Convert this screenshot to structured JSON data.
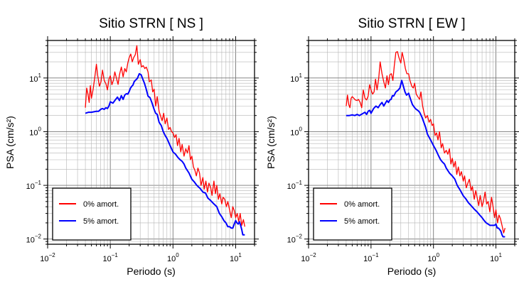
{
  "chart_data": [
    {
      "type": "line",
      "title": "Sitio STRN [ NS ]",
      "xlabel": "Periodo (s)",
      "ylabel": "PSA (cm/s²)",
      "xscale": "log",
      "yscale": "log",
      "xlim": [
        0.01,
        20
      ],
      "ylim": [
        0.008,
        50
      ],
      "xticks": [
        {
          "value": 0.01,
          "base": "10",
          "exp": "−2"
        },
        {
          "value": 0.1,
          "base": "10",
          "exp": "−1"
        },
        {
          "value": 1,
          "base": "10",
          "exp": "0"
        },
        {
          "value": 10,
          "base": "10",
          "exp": "1"
        }
      ],
      "yticks": [
        {
          "value": 0.01,
          "base": "10",
          "exp": "−2"
        },
        {
          "value": 0.1,
          "base": "10",
          "exp": "−1"
        },
        {
          "value": 1,
          "base": "10",
          "exp": "0"
        },
        {
          "value": 10,
          "base": "10",
          "exp": "1"
        }
      ],
      "grid": true,
      "legend": "bottom-left",
      "series": [
        {
          "name": "0% amort.",
          "color": "#ff0000",
          "x": [
            0.04,
            0.042,
            0.044,
            0.046,
            0.048,
            0.05,
            0.053,
            0.056,
            0.06,
            0.063,
            0.067,
            0.071,
            0.075,
            0.08,
            0.085,
            0.09,
            0.095,
            0.1,
            0.106,
            0.112,
            0.118,
            0.125,
            0.133,
            0.14,
            0.15,
            0.16,
            0.17,
            0.18,
            0.19,
            0.2,
            0.212,
            0.224,
            0.236,
            0.25,
            0.265,
            0.28,
            0.3,
            0.315,
            0.335,
            0.355,
            0.375,
            0.4,
            0.42,
            0.45,
            0.475,
            0.5,
            0.53,
            0.56,
            0.6,
            0.63,
            0.67,
            0.71,
            0.75,
            0.8,
            0.85,
            0.9,
            0.95,
            1.0,
            1.06,
            1.12,
            1.18,
            1.25,
            1.33,
            1.4,
            1.5,
            1.6,
            1.7,
            1.8,
            1.9,
            2.0,
            2.12,
            2.24,
            2.36,
            2.5,
            2.65,
            2.8,
            3.0,
            3.15,
            3.35,
            3.55,
            3.75,
            4.0,
            4.2,
            4.5,
            4.75,
            5.0,
            5.3,
            5.6,
            6.0,
            6.3,
            6.7,
            7.1,
            7.5,
            8.0,
            8.5,
            9.0,
            9.5,
            10.0,
            10.6,
            11.2,
            11.8,
            12.5,
            13.3,
            14.0
          ],
          "y": [
            2.8,
            6.5,
            5.0,
            3.5,
            7.2,
            4.2,
            6.0,
            9.5,
            18.0,
            11.0,
            7.0,
            8.5,
            14.0,
            9.0,
            7.8,
            6.0,
            9.5,
            11.0,
            7.5,
            9.0,
            13.0,
            10.0,
            7.6,
            11.5,
            16.0,
            10.5,
            15.0,
            13.0,
            19.0,
            24.0,
            28.0,
            20.0,
            24.0,
            27.0,
            40.0,
            18.0,
            22.0,
            16.0,
            17.0,
            15.0,
            16.0,
            13.0,
            8.5,
            9.2,
            5.5,
            6.2,
            3.0,
            4.5,
            2.4,
            2.0,
            1.6,
            2.2,
            1.4,
            1.8,
            1.1,
            1.2,
            1.0,
            0.95,
            0.78,
            0.88,
            0.55,
            0.75,
            0.42,
            0.58,
            0.35,
            0.48,
            0.4,
            0.55,
            0.3,
            0.35,
            0.22,
            0.19,
            0.15,
            0.21,
            0.17,
            0.1,
            0.14,
            0.085,
            0.12,
            0.075,
            0.11,
            0.09,
            0.065,
            0.12,
            0.07,
            0.1,
            0.055,
            0.07,
            0.045,
            0.06,
            0.055,
            0.04,
            0.05,
            0.035,
            0.025,
            0.04,
            0.034,
            0.025,
            0.03,
            0.021,
            0.03,
            0.018,
            0.023,
            0.017
          ]
        },
        {
          "name": "5% amort.",
          "color": "#0000ff",
          "x": [
            0.04,
            0.045,
            0.05,
            0.055,
            0.06,
            0.065,
            0.07,
            0.075,
            0.08,
            0.085,
            0.09,
            0.095,
            0.1,
            0.11,
            0.12,
            0.13,
            0.14,
            0.15,
            0.16,
            0.17,
            0.18,
            0.19,
            0.2,
            0.21,
            0.22,
            0.23,
            0.24,
            0.25,
            0.27,
            0.29,
            0.31,
            0.33,
            0.35,
            0.37,
            0.4,
            0.43,
            0.46,
            0.5,
            0.53,
            0.56,
            0.6,
            0.65,
            0.7,
            0.75,
            0.8,
            0.9,
            1.0,
            1.1,
            1.2,
            1.3,
            1.4,
            1.5,
            1.6,
            1.8,
            2.0,
            2.2,
            2.4,
            2.7,
            3.0,
            3.3,
            3.6,
            4.0,
            4.5,
            5.0,
            5.5,
            6.0,
            6.5,
            7.0,
            7.5,
            8.0,
            8.5,
            9.0,
            9.5,
            10.0,
            10.5,
            11.0,
            11.5,
            12.0,
            12.5,
            13.0,
            14.0
          ],
          "y": [
            2.2,
            2.3,
            2.3,
            2.35,
            2.4,
            2.4,
            2.6,
            2.7,
            2.6,
            2.8,
            2.7,
            3.0,
            3.6,
            3.4,
            3.9,
            4.4,
            3.8,
            4.7,
            4.0,
            4.8,
            5.1,
            5.0,
            5.6,
            6.5,
            7.0,
            7.4,
            8.5,
            9.0,
            9.8,
            12.0,
            11.5,
            9.5,
            8.0,
            6.5,
            4.6,
            4.3,
            3.5,
            2.6,
            2.2,
            2.1,
            1.5,
            1.3,
            1.0,
            0.85,
            0.75,
            0.55,
            0.42,
            0.38,
            0.33,
            0.3,
            0.28,
            0.25,
            0.21,
            0.17,
            0.13,
            0.115,
            0.1,
            0.088,
            0.075,
            0.072,
            0.058,
            0.052,
            0.045,
            0.04,
            0.03,
            0.026,
            0.022,
            0.02,
            0.017,
            0.017,
            0.016,
            0.016,
            0.019,
            0.022,
            0.02,
            0.019,
            0.021,
            0.018,
            0.015,
            0.012,
            0.012
          ]
        }
      ]
    },
    {
      "type": "line",
      "title": "Sitio STRN [ EW ]",
      "xlabel": "Periodo (s)",
      "ylabel": "PSA (cm/s²)",
      "xscale": "log",
      "yscale": "log",
      "xlim": [
        0.01,
        20
      ],
      "ylim": [
        0.008,
        50
      ],
      "xticks": [
        {
          "value": 0.01,
          "base": "10",
          "exp": "−2"
        },
        {
          "value": 0.1,
          "base": "10",
          "exp": "−1"
        },
        {
          "value": 1,
          "base": "10",
          "exp": "0"
        },
        {
          "value": 10,
          "base": "10",
          "exp": "1"
        }
      ],
      "yticks": [
        {
          "value": 0.01,
          "base": "10",
          "exp": "−2"
        },
        {
          "value": 0.1,
          "base": "10",
          "exp": "−1"
        },
        {
          "value": 1,
          "base": "10",
          "exp": "0"
        },
        {
          "value": 10,
          "base": "10",
          "exp": "1"
        }
      ],
      "grid": true,
      "legend": "bottom-left",
      "series": [
        {
          "name": "0% amort.",
          "color": "#ff0000",
          "x": [
            0.04,
            0.042,
            0.044,
            0.046,
            0.048,
            0.05,
            0.053,
            0.056,
            0.06,
            0.063,
            0.067,
            0.071,
            0.075,
            0.08,
            0.085,
            0.09,
            0.095,
            0.1,
            0.106,
            0.112,
            0.118,
            0.125,
            0.133,
            0.14,
            0.15,
            0.16,
            0.17,
            0.18,
            0.19,
            0.2,
            0.212,
            0.224,
            0.236,
            0.25,
            0.265,
            0.28,
            0.3,
            0.315,
            0.335,
            0.355,
            0.375,
            0.4,
            0.42,
            0.45,
            0.475,
            0.5,
            0.53,
            0.56,
            0.6,
            0.63,
            0.67,
            0.71,
            0.75,
            0.8,
            0.85,
            0.9,
            0.95,
            1.0,
            1.06,
            1.12,
            1.18,
            1.25,
            1.33,
            1.4,
            1.5,
            1.6,
            1.7,
            1.8,
            1.9,
            2.0,
            2.12,
            2.24,
            2.36,
            2.5,
            2.65,
            2.8,
            3.0,
            3.15,
            3.35,
            3.55,
            3.75,
            4.0,
            4.2,
            4.5,
            4.75,
            5.0,
            5.3,
            5.6,
            6.0,
            6.3,
            6.7,
            7.1,
            7.5,
            8.0,
            8.5,
            9.0,
            9.5,
            10.0,
            10.6,
            11.2,
            11.8,
            12.5,
            13.3,
            14.0
          ],
          "y": [
            3.0,
            4.8,
            3.2,
            2.8,
            4.2,
            4.5,
            4.2,
            3.9,
            3.8,
            4.0,
            3.5,
            2.8,
            6.0,
            4.2,
            3.9,
            4.6,
            7.5,
            6.0,
            5.0,
            5.5,
            9.5,
            6.0,
            10.0,
            20.0,
            12.0,
            8.5,
            6.5,
            11.0,
            7.5,
            11.5,
            12.0,
            9.0,
            17.0,
            30.0,
            31.0,
            24.0,
            19.0,
            30.0,
            22.0,
            15.0,
            12.0,
            12.0,
            9.0,
            7.0,
            6.5,
            8.0,
            5.0,
            4.5,
            4.0,
            5.5,
            3.0,
            2.2,
            1.8,
            2.0,
            1.5,
            1.7,
            1.3,
            1.4,
            0.85,
            0.95,
            0.7,
            1.0,
            0.5,
            0.6,
            0.4,
            0.45,
            0.38,
            0.48,
            0.25,
            0.32,
            0.22,
            0.28,
            0.16,
            0.22,
            0.15,
            0.18,
            0.12,
            0.15,
            0.09,
            0.11,
            0.13,
            0.08,
            0.095,
            0.055,
            0.08,
            0.06,
            0.042,
            0.065,
            0.04,
            0.05,
            0.075,
            0.045,
            0.05,
            0.032,
            0.06,
            0.04,
            0.025,
            0.035,
            0.02,
            0.028,
            0.024,
            0.018,
            0.013,
            0.016
          ]
        },
        {
          "name": "5% amort.",
          "color": "#0000ff",
          "x": [
            0.04,
            0.045,
            0.05,
            0.055,
            0.06,
            0.065,
            0.07,
            0.075,
            0.08,
            0.085,
            0.09,
            0.095,
            0.1,
            0.11,
            0.12,
            0.13,
            0.14,
            0.15,
            0.16,
            0.17,
            0.18,
            0.19,
            0.2,
            0.21,
            0.22,
            0.23,
            0.24,
            0.25,
            0.27,
            0.29,
            0.31,
            0.33,
            0.35,
            0.37,
            0.4,
            0.43,
            0.46,
            0.5,
            0.53,
            0.56,
            0.6,
            0.65,
            0.7,
            0.75,
            0.8,
            0.9,
            1.0,
            1.1,
            1.2,
            1.3,
            1.4,
            1.5,
            1.6,
            1.8,
            2.0,
            2.2,
            2.4,
            2.7,
            3.0,
            3.3,
            3.6,
            4.0,
            4.5,
            5.0,
            5.5,
            6.0,
            6.5,
            7.0,
            7.5,
            8.0,
            8.5,
            9.0,
            9.5,
            10.0,
            10.5,
            11.0,
            11.5,
            12.0,
            12.5,
            13.0,
            14.0
          ],
          "y": [
            2.0,
            2.0,
            2.05,
            2.0,
            2.1,
            2.0,
            2.1,
            2.2,
            2.3,
            2.1,
            2.4,
            2.5,
            2.2,
            2.7,
            3.0,
            2.8,
            3.2,
            3.5,
            3.0,
            3.4,
            3.8,
            3.5,
            3.9,
            4.0,
            4.7,
            4.6,
            5.0,
            5.5,
            5.9,
            6.5,
            9.0,
            7.0,
            5.5,
            4.8,
            5.2,
            4.0,
            3.2,
            2.8,
            2.6,
            2.5,
            2.3,
            1.9,
            1.5,
            1.2,
            0.9,
            0.7,
            0.55,
            0.45,
            0.36,
            0.3,
            0.27,
            0.25,
            0.21,
            0.17,
            0.15,
            0.13,
            0.1,
            0.08,
            0.064,
            0.056,
            0.048,
            0.042,
            0.036,
            0.032,
            0.028,
            0.025,
            0.022,
            0.02,
            0.019,
            0.018,
            0.018,
            0.018,
            0.018,
            0.019,
            0.016,
            0.016,
            0.015,
            0.014,
            0.012,
            0.011,
            0.011
          ]
        }
      ]
    }
  ]
}
